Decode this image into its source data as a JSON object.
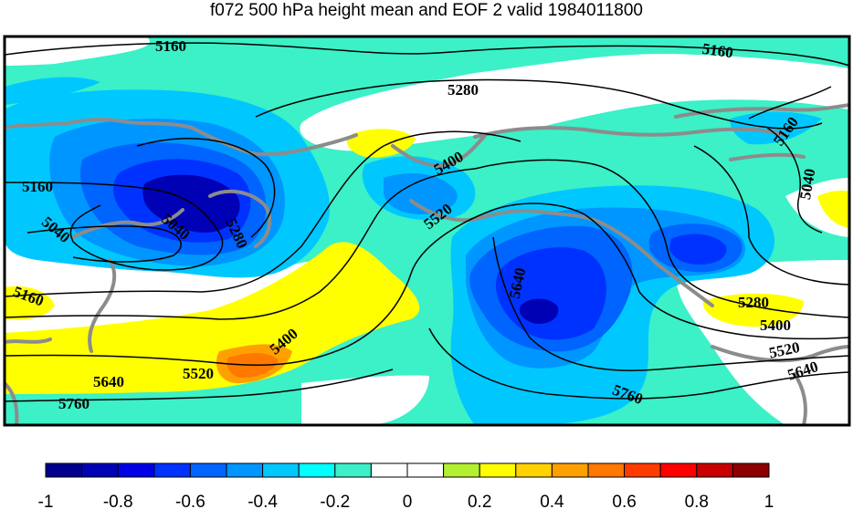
{
  "title": "f072 500 hPa height mean and EOF 2 valid 1984011800",
  "colorbar": {
    "colors": [
      "#00008c",
      "#0000b4",
      "#0000e6",
      "#0032ff",
      "#0064ff",
      "#0096ff",
      "#00c8ff",
      "#00ffff",
      "#3cf0c8",
      "#ffffff",
      "#ffffff",
      "#b4f032",
      "#ffff00",
      "#ffd200",
      "#ffa000",
      "#ff7800",
      "#ff3c00",
      "#ff0000",
      "#c80000",
      "#8c0000"
    ],
    "tick_labels": [
      "-1",
      "-0.8",
      "-0.6",
      "-0.4",
      "-0.2",
      "0",
      "0.2",
      "0.4",
      "0.6",
      "0.8",
      "1"
    ]
  },
  "contour_labels": [
    "5160",
    "5160",
    "5280",
    "5160",
    "5040",
    "5400",
    "5160",
    "5040",
    "5520",
    "5040",
    "5280",
    "5640",
    "5160",
    "5280",
    "5400",
    "5400",
    "5520",
    "5520",
    "5640",
    "5640",
    "5760",
    "5760"
  ],
  "colors": {
    "land_outline": "#8c8c8c",
    "contour_line": "#000000",
    "background_anomaly": "#3cf0c8"
  }
}
